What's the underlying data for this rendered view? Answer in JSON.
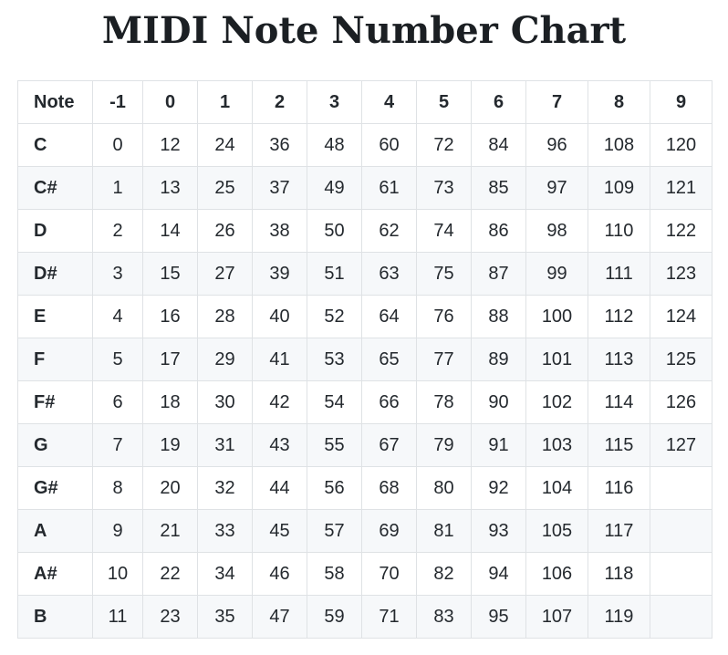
{
  "title": "MIDI Note Number Chart",
  "table": {
    "header": [
      "Note",
      "-1",
      "0",
      "1",
      "2",
      "3",
      "4",
      "5",
      "6",
      "7",
      "8",
      "9"
    ],
    "rows": [
      [
        "C",
        "0",
        "12",
        "24",
        "36",
        "48",
        "60",
        "72",
        "84",
        "96",
        "108",
        "120"
      ],
      [
        "C#",
        "1",
        "13",
        "25",
        "37",
        "49",
        "61",
        "73",
        "85",
        "97",
        "109",
        "121"
      ],
      [
        "D",
        "2",
        "14",
        "26",
        "38",
        "50",
        "62",
        "74",
        "86",
        "98",
        "110",
        "122"
      ],
      [
        "D#",
        "3",
        "15",
        "27",
        "39",
        "51",
        "63",
        "75",
        "87",
        "99",
        "111",
        "123"
      ],
      [
        "E",
        "4",
        "16",
        "28",
        "40",
        "52",
        "64",
        "76",
        "88",
        "100",
        "112",
        "124"
      ],
      [
        "F",
        "5",
        "17",
        "29",
        "41",
        "53",
        "65",
        "77",
        "89",
        "101",
        "113",
        "125"
      ],
      [
        "F#",
        "6",
        "18",
        "30",
        "42",
        "54",
        "66",
        "78",
        "90",
        "102",
        "114",
        "126"
      ],
      [
        "G",
        "7",
        "19",
        "31",
        "43",
        "55",
        "67",
        "79",
        "91",
        "103",
        "115",
        "127"
      ],
      [
        "G#",
        "8",
        "20",
        "32",
        "44",
        "56",
        "68",
        "80",
        "92",
        "104",
        "116",
        ""
      ],
      [
        "A",
        "9",
        "21",
        "33",
        "45",
        "57",
        "69",
        "81",
        "93",
        "105",
        "117",
        ""
      ],
      [
        "A#",
        "10",
        "22",
        "34",
        "46",
        "58",
        "70",
        "82",
        "94",
        "106",
        "118",
        ""
      ],
      [
        "B",
        "11",
        "23",
        "35",
        "47",
        "59",
        "71",
        "83",
        "95",
        "107",
        "119",
        ""
      ]
    ]
  },
  "colors": {
    "border": "#dfe2e5",
    "stripe": "#f6f8fa",
    "text": "#24292e"
  }
}
